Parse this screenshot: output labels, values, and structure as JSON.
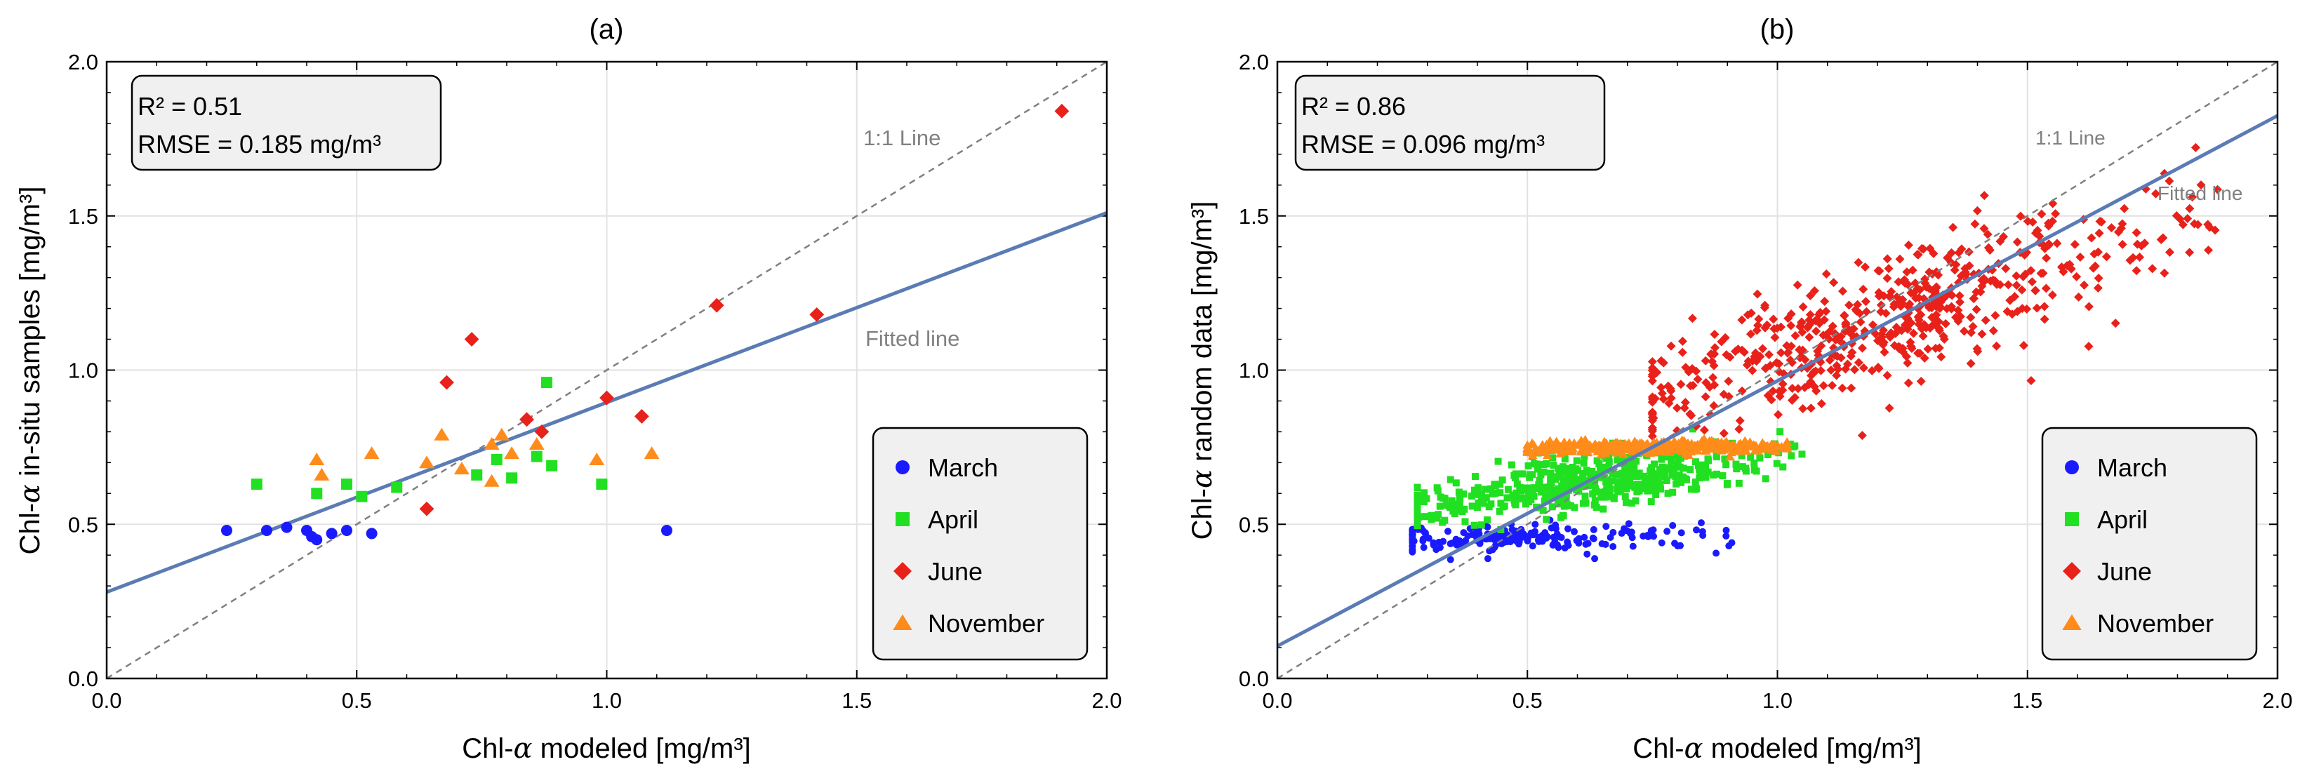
{
  "chart_data": [
    {
      "type": "scatter",
      "panel_label": "(a)",
      "xlabel_prefix": "Chl-",
      "xlabel_suffix": " modeled [mg/m³]",
      "ylabel_prefix": "Chl-",
      "ylabel_suffix": " in-situ samples [mg/m³]",
      "alpha_symbol": "α",
      "xlim": [
        0,
        2
      ],
      "ylim": [
        0,
        2
      ],
      "xticks": [
        "0.0",
        "0.5",
        "1.0",
        "1.5",
        "2.0"
      ],
      "yticks": [
        "0.0",
        "0.5",
        "1.0",
        "1.5",
        "2.0"
      ],
      "grid": true,
      "stats": {
        "r2_label": "R² = ",
        "r2_value": "0.51",
        "rmse_label": "RMSE = ",
        "rmse_value": "0.185 mg/m³"
      },
      "one_to_one_label": "1:1 Line",
      "fitted_label": "Fitted line",
      "fit": {
        "intercept": 0.28,
        "slope": 0.615
      },
      "legend_position": "bottom-right",
      "colors": {
        "fit": "#5b7bb4",
        "one_to_one": "#808080"
      },
      "series": [
        {
          "name": "March",
          "marker": "circle",
          "color": "#1a1aff",
          "points": [
            [
              0.24,
              0.48
            ],
            [
              0.32,
              0.48
            ],
            [
              0.36,
              0.49
            ],
            [
              0.4,
              0.48
            ],
            [
              0.41,
              0.46
            ],
            [
              0.42,
              0.45
            ],
            [
              0.45,
              0.47
            ],
            [
              0.48,
              0.48
            ],
            [
              0.53,
              0.47
            ],
            [
              1.12,
              0.48
            ]
          ]
        },
        {
          "name": "April",
          "marker": "square",
          "color": "#21e021",
          "points": [
            [
              0.3,
              0.63
            ],
            [
              0.42,
              0.6
            ],
            [
              0.48,
              0.63
            ],
            [
              0.51,
              0.59
            ],
            [
              0.58,
              0.62
            ],
            [
              0.74,
              0.66
            ],
            [
              0.78,
              0.71
            ],
            [
              0.81,
              0.65
            ],
            [
              0.86,
              0.72
            ],
            [
              0.88,
              0.96
            ],
            [
              0.89,
              0.69
            ],
            [
              0.99,
              0.63
            ]
          ]
        },
        {
          "name": "June",
          "marker": "diamond",
          "color": "#e8211a",
          "points": [
            [
              0.64,
              0.55
            ],
            [
              0.68,
              0.96
            ],
            [
              0.73,
              1.1
            ],
            [
              0.84,
              0.84
            ],
            [
              0.87,
              0.8
            ],
            [
              1.0,
              0.91
            ],
            [
              1.07,
              0.85
            ],
            [
              1.22,
              1.21
            ],
            [
              1.42,
              1.18
            ],
            [
              1.91,
              1.84
            ]
          ]
        },
        {
          "name": "November",
          "marker": "triangle",
          "color": "#ff8c1a",
          "points": [
            [
              0.42,
              0.71
            ],
            [
              0.43,
              0.66
            ],
            [
              0.53,
              0.73
            ],
            [
              0.64,
              0.7
            ],
            [
              0.67,
              0.79
            ],
            [
              0.71,
              0.68
            ],
            [
              0.77,
              0.76
            ],
            [
              0.77,
              0.64
            ],
            [
              0.79,
              0.79
            ],
            [
              0.81,
              0.73
            ],
            [
              0.86,
              0.76
            ],
            [
              0.98,
              0.71
            ],
            [
              1.09,
              0.73
            ]
          ]
        }
      ]
    },
    {
      "type": "scatter",
      "panel_label": "(b)",
      "xlabel_prefix": "Chl-",
      "xlabel_suffix": " modeled [mg/m³]",
      "ylabel_prefix": "Chl-",
      "ylabel_suffix": " random data [mg/m³]",
      "alpha_symbol": "α",
      "xlim": [
        0,
        2
      ],
      "ylim": [
        0,
        2
      ],
      "xticks": [
        "0.0",
        "0.5",
        "1.0",
        "1.5",
        "2.0"
      ],
      "yticks": [
        "0.0",
        "0.5",
        "1.0",
        "1.5",
        "2.0"
      ],
      "grid": true,
      "stats": {
        "r2_label": "R² = ",
        "r2_value": "0.86",
        "rmse_label": "RMSE = ",
        "rmse_value": "0.096 mg/m³"
      },
      "one_to_one_label": "1:1 Line",
      "fitted_label": "Fitted line",
      "fit": {
        "intercept": 0.105,
        "slope": 0.86
      },
      "legend_position": "bottom-right",
      "colors": {
        "fit": "#5b7bb4",
        "one_to_one": "#808080"
      },
      "series": [
        {
          "name": "March",
          "marker": "circle",
          "color": "#1a1aff",
          "count": 200,
          "cluster": {
            "x_range": [
              0.27,
              0.92
            ],
            "x_center": 0.45,
            "y_mean": 0.455,
            "y_sd": 0.02,
            "slope": 0.02
          }
        },
        {
          "name": "April",
          "marker": "square",
          "color": "#21e021",
          "count": 500,
          "cluster": {
            "x_range": [
              0.28,
              1.05
            ],
            "x_center": 0.62,
            "y_mean": 0.635,
            "y_sd": 0.045,
            "slope": 0.25
          }
        },
        {
          "name": "June",
          "marker": "diamond",
          "color": "#e8211a",
          "count": 600,
          "cluster": {
            "x_range": [
              0.75,
              1.88
            ],
            "x_center": 1.2,
            "y_mean": 1.15,
            "y_sd": 0.1,
            "slope": 0.55
          }
        },
        {
          "name": "November",
          "marker": "triangle",
          "color": "#ff8c1a",
          "count": 420,
          "cluster": {
            "x_range": [
              0.5,
              1.02
            ],
            "x_center": 0.75,
            "y_mean": 0.75,
            "y_sd": 0.01,
            "slope": 0.01
          }
        }
      ]
    }
  ]
}
